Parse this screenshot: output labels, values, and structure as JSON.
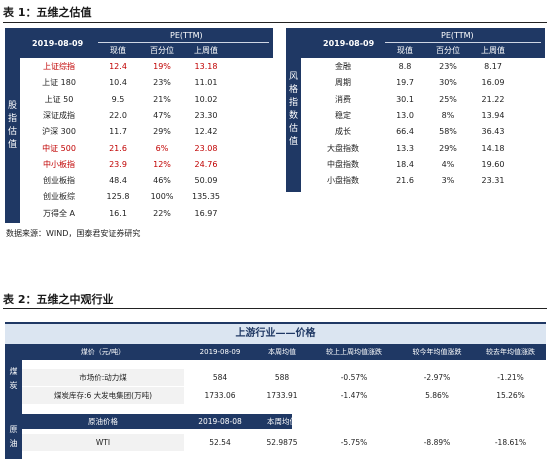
{
  "table1": {
    "heading": "表 1：五维之估值",
    "left": {
      "side_label": [
        "股",
        "指",
        "估",
        "值"
      ],
      "date": "2019-08-09",
      "pe_label": "PE(TTM)",
      "columns": [
        "现值",
        "百分位",
        "上周值"
      ],
      "rows": [
        {
          "name": "上证综指",
          "now": "12.4",
          "pct": "19%",
          "prev": "13.18",
          "red": true
        },
        {
          "name": "上证 180",
          "now": "10.4",
          "pct": "23%",
          "prev": "11.01",
          "red": false
        },
        {
          "name": "上证 50",
          "now": "9.5",
          "pct": "21%",
          "prev": "10.02",
          "red": false
        },
        {
          "name": "深证成指",
          "now": "22.0",
          "pct": "47%",
          "prev": "23.30",
          "red": false
        },
        {
          "name": "沪深 300",
          "now": "11.7",
          "pct": "29%",
          "prev": "12.42",
          "red": false
        },
        {
          "name": "中证 500",
          "now": "21.6",
          "pct": "6%",
          "prev": "23.08",
          "red": true
        },
        {
          "name": "中小板指",
          "now": "23.9",
          "pct": "12%",
          "prev": "24.76",
          "red": true
        },
        {
          "name": "创业板指",
          "now": "48.4",
          "pct": "46%",
          "prev": "50.09",
          "red": false
        },
        {
          "name": "创业板综",
          "now": "125.8",
          "pct": "100%",
          "prev": "135.35",
          "red": false
        },
        {
          "name": "万得全 A",
          "now": "16.1",
          "pct": "22%",
          "prev": "16.97",
          "red": false
        }
      ]
    },
    "right": {
      "side_label": [
        "风",
        "格",
        "指",
        "数",
        "估",
        "值"
      ],
      "date": "2019-08-09",
      "pe_label": "PE(TTM)",
      "columns": [
        "现值",
        "百分位",
        "上周值"
      ],
      "rows": [
        {
          "name": "金融",
          "now": "8.8",
          "pct": "23%",
          "prev": "8.17"
        },
        {
          "name": "周期",
          "now": "19.7",
          "pct": "30%",
          "prev": "16.09"
        },
        {
          "name": "消费",
          "now": "30.1",
          "pct": "25%",
          "prev": "21.22"
        },
        {
          "name": "稳定",
          "now": "13.0",
          "pct": "8%",
          "prev": "13.94"
        },
        {
          "name": "成长",
          "now": "66.4",
          "pct": "58%",
          "prev": "36.43"
        },
        {
          "name": "大盘指数",
          "now": "13.3",
          "pct": "29%",
          "prev": "14.18"
        },
        {
          "name": "中盘指数",
          "now": "18.4",
          "pct": "4%",
          "prev": "19.60"
        },
        {
          "name": "小盘指数",
          "now": "21.6",
          "pct": "3%",
          "prev": "23.31"
        }
      ]
    },
    "source": "数据来源：WIND，国泰君安证券研究"
  },
  "table2": {
    "heading": "表 2：五维之中观行业",
    "title": "上游行业——价格",
    "coal": {
      "cat_label": [
        "煤",
        "炭"
      ],
      "header": [
        "煤价（元/吨）",
        "2019-08-09",
        "本周均值",
        "较上上周均值涨跌",
        "较今年均值涨跌",
        "较去年均值涨跌"
      ],
      "rows": [
        {
          "label": "市场价:动力煤",
          "c1": "584",
          "c2": "588",
          "c3": "-0.57%",
          "c4": "-2.97%",
          "c5": "-1.21%"
        },
        {
          "label": "煤炭库存:6 大发电集团(万吨)",
          "c1": "1733.06",
          "c2": "1733.91",
          "c3": "-1.47%",
          "c4": "5.86%",
          "c5": "15.26%"
        }
      ]
    },
    "oil": {
      "cat_label": [
        "原",
        "油"
      ],
      "header": [
        "原油价格",
        "2019-08-08",
        "本周均值"
      ],
      "rows": [
        {
          "label": "WTI",
          "c1": "52.54",
          "c2": "52.9875",
          "c3": "-5.75%",
          "c4": "-8.89%",
          "c5": "-18.61%"
        }
      ]
    }
  }
}
